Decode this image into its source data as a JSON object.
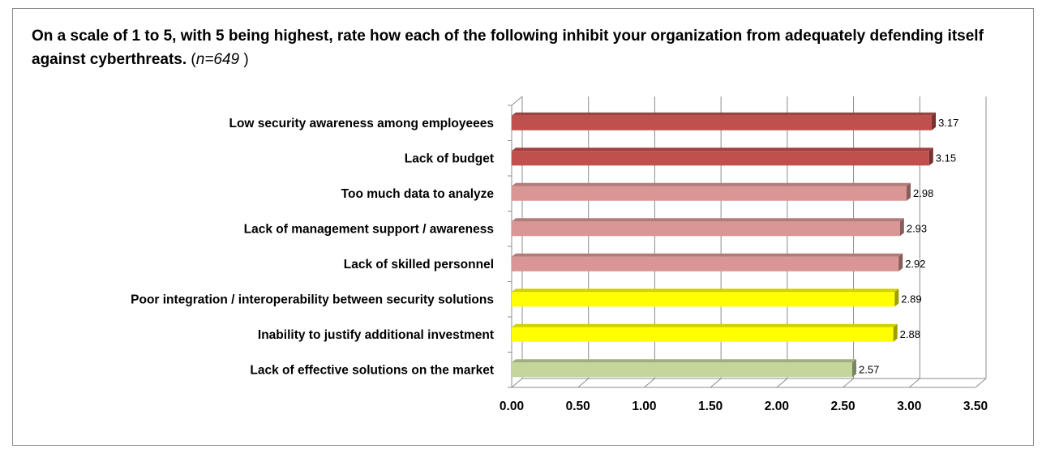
{
  "chart_data": {
    "type": "bar",
    "orientation": "horizontal",
    "style": "3d",
    "title": "On a scale of 1 to 5, with 5 being highest, rate how each of the following inhibit your organization from adequately defending itself against cyberthreats.",
    "note_prefix": "(",
    "note_value": "n=649",
    "note_suffix": " )",
    "categories": [
      "Low security awareness among employeees",
      "Lack of budget",
      "Too much data to analyze",
      "Lack of management support / awareness",
      "Lack of skilled personnel",
      "Poor integration / interoperability between security solutions",
      "Inability to justify additional investment",
      "Lack of effective solutions on the market"
    ],
    "values": [
      3.17,
      3.15,
      2.98,
      2.93,
      2.92,
      2.89,
      2.88,
      2.57
    ],
    "data_labels": [
      "3.17",
      "3.15",
      "2.98",
      "2.93",
      "2.92",
      "2.89",
      "2.88",
      "2.57"
    ],
    "bar_colors": [
      "#c0504d",
      "#c0504d",
      "#d99694",
      "#d99694",
      "#d99694",
      "#ffff00",
      "#ffff00",
      "#c3d69b"
    ],
    "xlim": [
      0,
      3.5
    ],
    "xticks": [
      "0.00",
      "0.50",
      "1.00",
      "1.50",
      "2.00",
      "2.50",
      "3.00",
      "3.50"
    ],
    "grid": true,
    "legend": "none",
    "xlabel": "",
    "ylabel": ""
  }
}
